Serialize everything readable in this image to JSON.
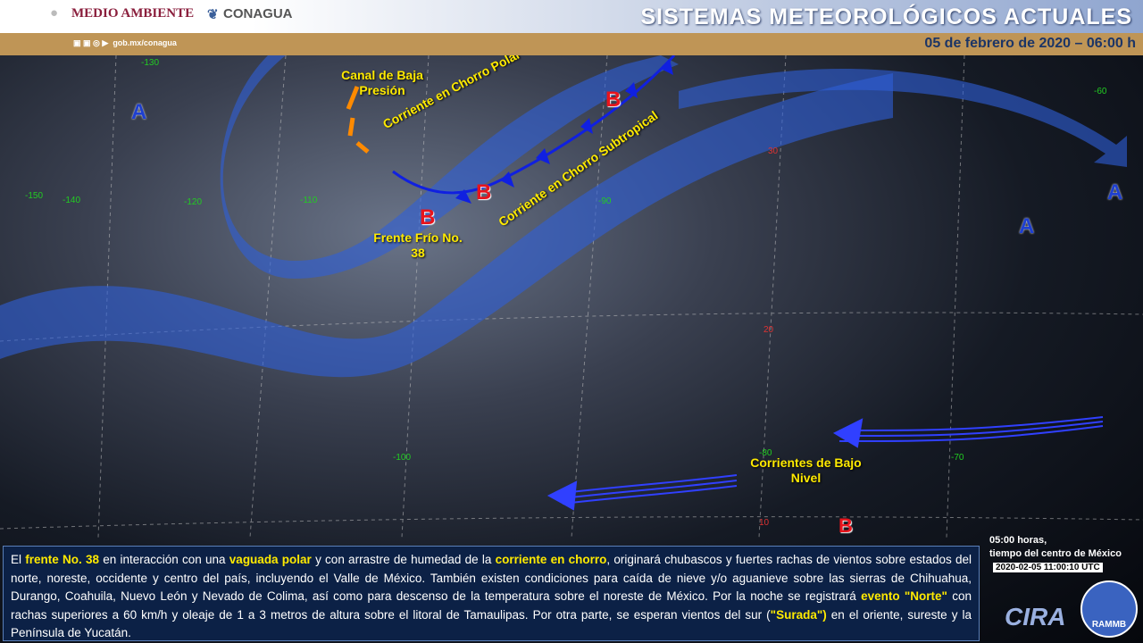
{
  "header": {
    "logo_left": "MEDIO AMBIENTE",
    "logo_right": "CONAGUA",
    "title": "SISTEMAS METEOROLÓGICOS ACTUALES",
    "date": "05 de febrero de 2020 – 06:00 h",
    "social_url": "gob.mx/conagua",
    "social_icons": [
      "facebook-icon",
      "twitter-icon",
      "instagram-icon",
      "youtube-icon"
    ]
  },
  "map": {
    "labels": {
      "canal": "Canal de Baja Presión",
      "chorro_polar": "Corriente en Chorro Polar",
      "chorro_sub": "Corriente en Chorro Subtropical",
      "frente": "Frente Frío No. 38",
      "bajo_nivel": "Corrientes de Bajo Nivel"
    },
    "high": "A",
    "low": "B",
    "grid_lon": [
      "-130",
      "-120",
      "-110",
      "-100",
      "-90",
      "-80",
      "-70",
      "-60",
      "-150",
      "-140"
    ],
    "grid_lat": [
      "30",
      "20",
      "10"
    ],
    "colors": {
      "jet": "#2f5fd8",
      "front": "#1020e0",
      "low": "#e8141c",
      "trough": "#ff8a00",
      "label": "#ffea00"
    }
  },
  "bulletin": {
    "p1": "El ",
    "h1": "frente No. 38",
    "p2": " en interacción con una ",
    "h2": "vaguada polar",
    "p3": " y con arrastre de humedad de la ",
    "h3": "corriente en chorro",
    "p4": ", originará chubascos y fuertes rachas de vientos sobre estados del norte, noreste, occidente y centro del país, incluyendo el Valle de México. También existen condiciones para caída de nieve y/o aguanieve sobre las sierras de Chihuahua, Durango, Coahuila, Nuevo León y Nevado de Colima, así como para descenso de la temperatura sobre el noreste de México. Por la noche se registrará ",
    "h4": "evento \"Norte\"",
    "p5": " con rachas superiores a 60 km/h y oleaje de 1 a 3 metros de altura sobre el litoral de Tamaulipas. Por otra parte, se esperan vientos del sur (",
    "h5": "\"Surada\")",
    "p6": " en el oriente, sureste y la Península de Yucatán."
  },
  "timestamp": {
    "local_line1": "05:00 horas,",
    "local_line2": "tiempo del centro de México",
    "utc": "2020-02-05 11:00:10 UTC"
  },
  "credits": {
    "cira": "CIRA",
    "rammb": "RAMMB"
  }
}
